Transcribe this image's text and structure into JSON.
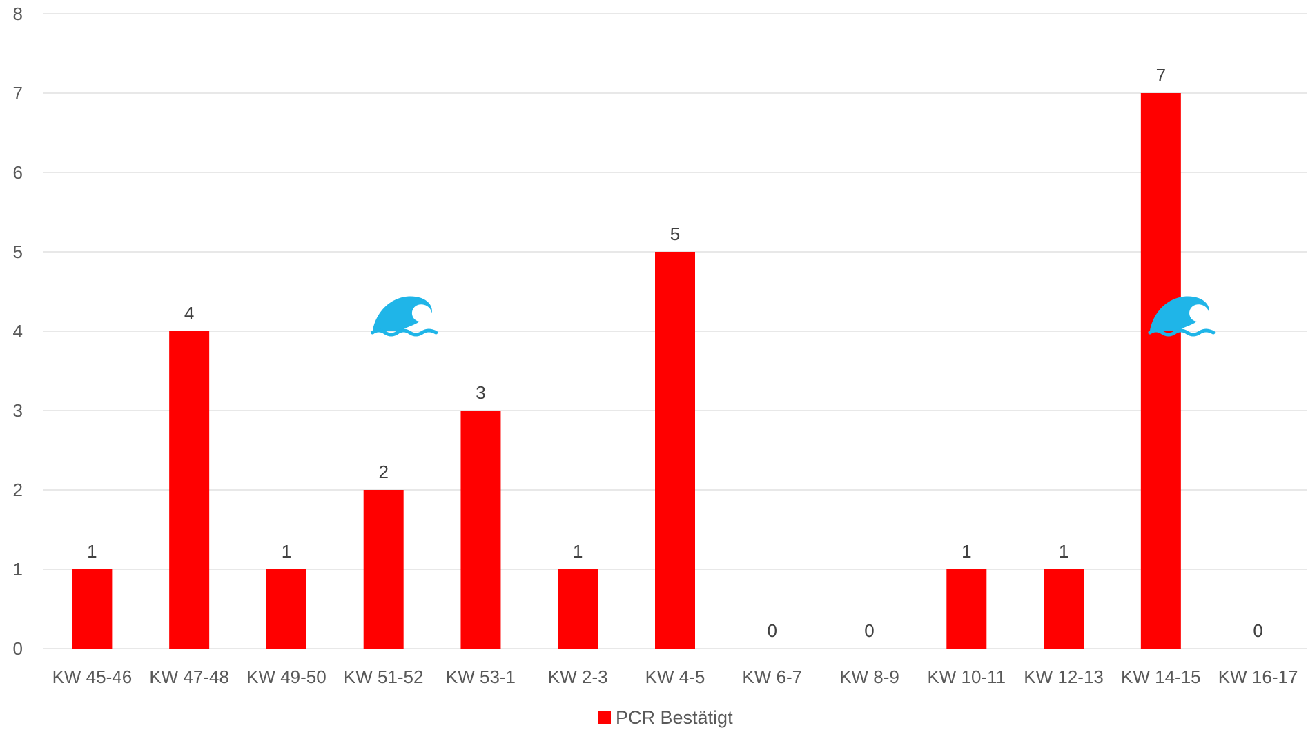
{
  "chart_data": {
    "type": "bar",
    "title": "",
    "xlabel": "",
    "ylabel": "",
    "ylim": [
      0,
      8
    ],
    "yticks": [
      0,
      1,
      2,
      3,
      4,
      5,
      6,
      7,
      8
    ],
    "grid": true,
    "legend_position": "bottom",
    "categories": [
      "KW 45-46",
      "KW 47-48",
      "KW 49-50",
      "KW 51-52",
      "KW 53-1",
      "KW 2-3",
      "KW 4-5",
      "KW 6-7",
      "KW 8-9",
      "KW 10-11",
      "KW 12-13",
      "KW 14-15",
      "KW 16-17"
    ],
    "series": [
      {
        "name": "PCR Bestätigt",
        "color": "#ff0000",
        "values": [
          1,
          4,
          1,
          2,
          3,
          1,
          5,
          0,
          0,
          1,
          1,
          7,
          0
        ]
      }
    ],
    "annotations": [
      {
        "icon": "wave-icon",
        "category": "KW 51-52",
        "y": 4
      },
      {
        "icon": "wave-icon",
        "category": "KW 14-15",
        "y": 4
      }
    ]
  },
  "colors": {
    "bar": "#ff0000",
    "grid": "#d9d9d9",
    "wave": "#1fb5e8"
  }
}
